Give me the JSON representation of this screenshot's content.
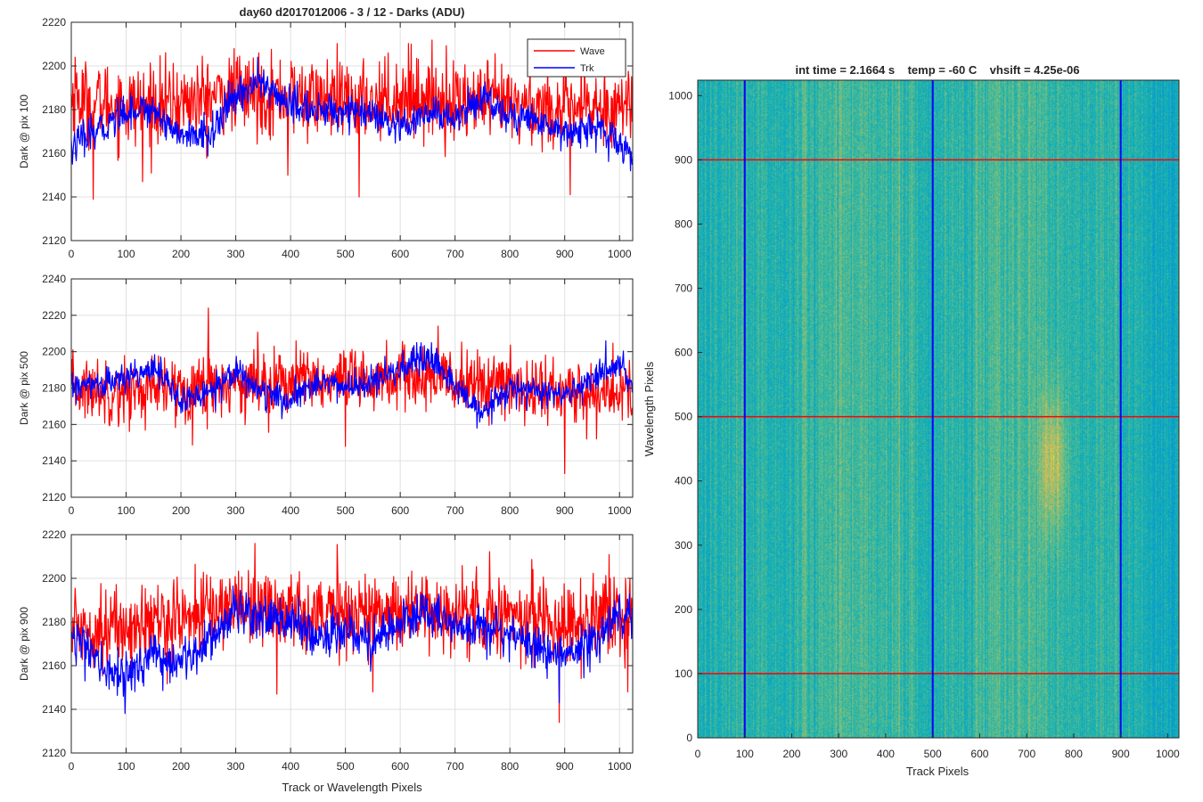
{
  "figure": {
    "title": "day60 d2017012006 - 3 / 12 - Darks (ADU)",
    "shared_xlabel": "Track or Wavelength Pixels"
  },
  "legend": {
    "entries": [
      {
        "label": "Wave",
        "color": "#ff0000"
      },
      {
        "label": "Trk",
        "color": "#0000ff"
      }
    ]
  },
  "colors": {
    "wave": "#ff0000",
    "trk": "#0000ff",
    "grid": "#e0e0e0",
    "axis": "#262626"
  },
  "chart_data": [
    {
      "type": "line",
      "ylabel": "Dark @ pix 100",
      "xlabel": "",
      "xlim": [
        0,
        1024
      ],
      "ylim": [
        2120,
        2220
      ],
      "xticks": [
        0,
        100,
        200,
        300,
        400,
        500,
        600,
        700,
        800,
        900,
        1000
      ],
      "yticks": [
        2120,
        2140,
        2160,
        2180,
        2200,
        2220
      ],
      "grid": true,
      "legend": "top-right",
      "series": [
        {
          "name": "Wave",
          "color": "#ff0000",
          "n_points": 1024,
          "anchors": [
            [
              0,
              2185
            ],
            [
              100,
              2182
            ],
            [
              200,
              2183
            ],
            [
              300,
              2188
            ],
            [
              400,
              2186
            ],
            [
              500,
              2183
            ],
            [
              600,
              2186
            ],
            [
              700,
              2184
            ],
            [
              800,
              2182
            ],
            [
              900,
              2180
            ],
            [
              1024,
              2182
            ]
          ],
          "noise": 9,
          "spikes": [
            [
              7,
              2204
            ],
            [
              40,
              2139
            ],
            [
              130,
              2147
            ],
            [
              395,
              2150
            ],
            [
              525,
              2140
            ],
            [
              620,
              2210
            ],
            [
              910,
              2141
            ]
          ]
        },
        {
          "name": "Trk",
          "color": "#0000ff",
          "n_points": 1024,
          "anchors": [
            [
              0,
              2163
            ],
            [
              50,
              2170
            ],
            [
              100,
              2180
            ],
            [
              150,
              2180
            ],
            [
              200,
              2168
            ],
            [
              250,
              2168
            ],
            [
              300,
              2186
            ],
            [
              340,
              2193
            ],
            [
              400,
              2182
            ],
            [
              450,
              2179
            ],
            [
              500,
              2180
            ],
            [
              550,
              2177
            ],
            [
              600,
              2170
            ],
            [
              650,
              2178
            ],
            [
              700,
              2176
            ],
            [
              750,
              2186
            ],
            [
              800,
              2177
            ],
            [
              850,
              2175
            ],
            [
              900,
              2170
            ],
            [
              950,
              2172
            ],
            [
              1024,
              2160
            ]
          ],
          "noise": 4,
          "spikes": [
            [
              2,
              2155
            ],
            [
              340,
              2204
            ],
            [
              1020,
              2152
            ]
          ]
        }
      ]
    },
    {
      "type": "line",
      "ylabel": "Dark @ pix 500",
      "xlabel": "",
      "xlim": [
        0,
        1024
      ],
      "ylim": [
        2120,
        2240
      ],
      "xticks": [
        0,
        100,
        200,
        300,
        400,
        500,
        600,
        700,
        800,
        900,
        1000
      ],
      "yticks": [
        2120,
        2140,
        2160,
        2180,
        2200,
        2220,
        2240
      ],
      "grid": true,
      "series": [
        {
          "name": "Wave",
          "color": "#ff0000",
          "n_points": 1024,
          "anchors": [
            [
              0,
              2180
            ],
            [
              100,
              2178
            ],
            [
              200,
              2180
            ],
            [
              300,
              2183
            ],
            [
              400,
              2184
            ],
            [
              500,
              2182
            ],
            [
              600,
              2186
            ],
            [
              700,
              2184
            ],
            [
              800,
              2181
            ],
            [
              900,
              2177
            ],
            [
              1024,
              2178
            ]
          ],
          "noise": 9,
          "spikes": [
            [
              250,
              2224
            ],
            [
              500,
              2148
            ],
            [
              900,
              2133
            ],
            [
              940,
              2152
            ]
          ]
        },
        {
          "name": "Trk",
          "color": "#0000ff",
          "n_points": 1024,
          "anchors": [
            [
              0,
              2180
            ],
            [
              50,
              2182
            ],
            [
              100,
              2185
            ],
            [
              150,
              2193
            ],
            [
              200,
              2172
            ],
            [
              250,
              2178
            ],
            [
              300,
              2190
            ],
            [
              350,
              2177
            ],
            [
              400,
              2172
            ],
            [
              450,
              2185
            ],
            [
              500,
              2180
            ],
            [
              550,
              2183
            ],
            [
              600,
              2190
            ],
            [
              650,
              2196
            ],
            [
              700,
              2182
            ],
            [
              750,
              2165
            ],
            [
              800,
              2180
            ],
            [
              850,
              2178
            ],
            [
              900,
              2175
            ],
            [
              950,
              2185
            ],
            [
              1000,
              2192
            ],
            [
              1024,
              2180
            ]
          ],
          "noise": 4,
          "spikes": [
            [
              630,
              2205
            ],
            [
              740,
              2158
            ],
            [
              975,
              2206
            ]
          ]
        }
      ]
    },
    {
      "type": "line",
      "ylabel": "Dark @ pix 900",
      "xlabel": "Track or Wavelength Pixels",
      "xlim": [
        0,
        1024
      ],
      "ylim": [
        2120,
        2220
      ],
      "xticks": [
        0,
        100,
        200,
        300,
        400,
        500,
        600,
        700,
        800,
        900,
        1000
      ],
      "yticks": [
        2120,
        2140,
        2160,
        2180,
        2200,
        2220
      ],
      "grid": true,
      "series": [
        {
          "name": "Wave",
          "color": "#ff0000",
          "n_points": 1024,
          "anchors": [
            [
              0,
              2178
            ],
            [
              100,
              2177
            ],
            [
              200,
              2182
            ],
            [
              300,
              2188
            ],
            [
              400,
              2186
            ],
            [
              500,
              2184
            ],
            [
              600,
              2186
            ],
            [
              700,
              2183
            ],
            [
              800,
              2184
            ],
            [
              900,
              2180
            ],
            [
              1024,
              2182
            ]
          ],
          "noise": 9,
          "spikes": [
            [
              335,
              2216
            ],
            [
              375,
              2147
            ],
            [
              550,
              2148
            ],
            [
              890,
              2134
            ],
            [
              1015,
              2148
            ]
          ]
        },
        {
          "name": "Trk",
          "color": "#0000ff",
          "n_points": 1024,
          "anchors": [
            [
              0,
              2177
            ],
            [
              50,
              2160
            ],
            [
              100,
              2155
            ],
            [
              150,
              2165
            ],
            [
              200,
              2160
            ],
            [
              250,
              2172
            ],
            [
              300,
              2186
            ],
            [
              350,
              2183
            ],
            [
              400,
              2180
            ],
            [
              450,
              2172
            ],
            [
              500,
              2178
            ],
            [
              550,
              2170
            ],
            [
              600,
              2180
            ],
            [
              650,
              2185
            ],
            [
              700,
              2176
            ],
            [
              750,
              2180
            ],
            [
              800,
              2175
            ],
            [
              850,
              2168
            ],
            [
              900,
              2165
            ],
            [
              950,
              2170
            ],
            [
              1000,
              2185
            ],
            [
              1024,
              2185
            ]
          ],
          "noise": 5,
          "spikes": [
            [
              25,
              2153
            ],
            [
              95,
              2146
            ],
            [
              890,
              2143
            ]
          ]
        }
      ]
    },
    {
      "type": "heatmap",
      "title": "int time = 2.1664 s    temp = -60 C    vhsift = 4.25e-06",
      "xlabel": "Track Pixels",
      "ylabel": "Wavelength Pixels",
      "xlim": [
        0,
        1024
      ],
      "ylim": [
        0,
        1024
      ],
      "xticks": [
        0,
        100,
        200,
        300,
        400,
        500,
        600,
        700,
        800,
        900,
        1000
      ],
      "yticks": [
        0,
        100,
        200,
        300,
        400,
        500,
        600,
        700,
        800,
        900,
        1000
      ],
      "colormap": "parula",
      "vertical_markers": {
        "color": "#0000ff",
        "x": [
          100,
          500,
          900
        ]
      },
      "horizontal_markers": {
        "color": "#ff0000",
        "y": [
          100,
          500,
          900
        ]
      },
      "hotspots": [
        {
          "x": 755,
          "y": 430,
          "sx": 28,
          "sy": 110,
          "level": 1.0
        }
      ]
    }
  ]
}
